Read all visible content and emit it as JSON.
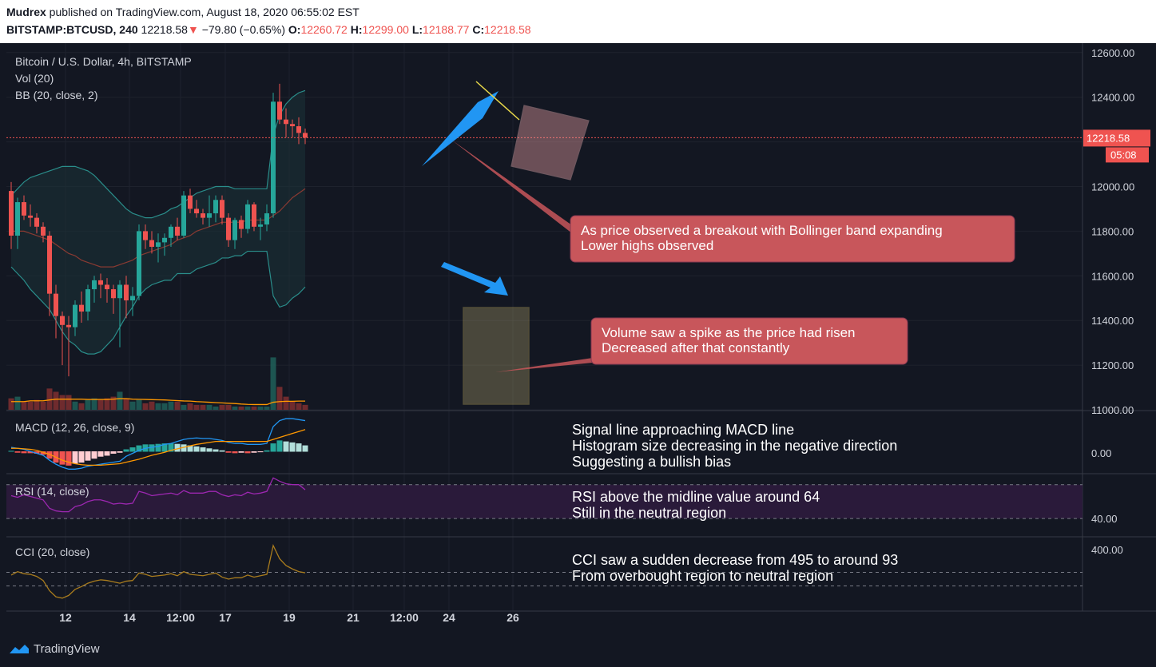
{
  "header": {
    "author": "Mudrex",
    "published": " published on TradingView.com, August 18, 2020 06:55:02 EST",
    "symbol": "BITSTAMP:BTCUSD, 240",
    "last": "12218.58",
    "change": "−79.80 (−0.65%)",
    "o_label": "O:",
    "o_val": "12260.72",
    "h_label": "H:",
    "h_val": "12299.00",
    "l_label": "L:",
    "l_val": "12188.77",
    "c_label": "C:",
    "c_val": "12218.58"
  },
  "legend": {
    "title": "Bitcoin / U.S. Dollar, 4h, BITSTAMP",
    "vol": "Vol (20)",
    "bb": "BB (20, close, 2)",
    "macd": "MACD (12, 26, close, 9)",
    "rsi": "RSI (14, close)",
    "cci": "CCI (20, close)"
  },
  "price_label": "12218.58",
  "countdown": "05:08",
  "footer": {
    "brand": "TradingView"
  },
  "annotations": {
    "box1": [
      "As price observed a breakout with Bollinger band expanding",
      "Lower highs observed"
    ],
    "box2": [
      "Volume saw a spike as the price had risen",
      "Decreased after that constantly"
    ],
    "macd": [
      "Signal line approaching MACD line",
      "Histogram size decreasing in the negative direction",
      "Suggesting a bullish bias"
    ],
    "rsi": [
      "RSI above the midline value around 64",
      "Still in the neutral region"
    ],
    "cci": [
      "CCI saw a sudden decrease from 495 to around 93",
      "From overbought region to neutral region"
    ]
  },
  "colors": {
    "up": "#26a69a",
    "down": "#ef5350",
    "bg": "#131722",
    "macd": "#2196f3",
    "signal": "#ff9800",
    "rsi": "#9c27b0",
    "cci": "#a97c1d",
    "note": "#c8565b"
  },
  "chart_data": {
    "type": "candlestick",
    "title": "Bitcoin / U.S. Dollar, 4h, BITSTAMP",
    "x_ticks": [
      "12",
      "14",
      "12:00",
      "17",
      "19",
      "21",
      "12:00",
      "24",
      "26"
    ],
    "x_tick_slots": [
      8.5,
      18.5,
      26.5,
      33.5,
      43.5,
      53.5,
      61.5,
      68.5,
      78.5
    ],
    "price_axis": {
      "ticks": [
        12600,
        12400,
        12200,
        12000,
        11800,
        11600,
        11400,
        11200,
        11000
      ],
      "range": [
        11000,
        12650
      ]
    },
    "candles": [
      [
        11980,
        12020,
        11720,
        11780
      ],
      [
        11780,
        11950,
        11720,
        11930
      ],
      [
        11930,
        11960,
        11850,
        11870
      ],
      [
        11870,
        11920,
        11820,
        11860
      ],
      [
        11860,
        11880,
        11790,
        11820
      ],
      [
        11820,
        11840,
        11750,
        11780
      ],
      [
        11780,
        11800,
        11420,
        11520
      ],
      [
        11520,
        11560,
        11320,
        11420
      ],
      [
        11420,
        11440,
        11200,
        11380
      ],
      [
        11380,
        11420,
        11150,
        11370
      ],
      [
        11370,
        11490,
        11330,
        11470
      ],
      [
        11470,
        11530,
        11390,
        11440
      ],
      [
        11440,
        11560,
        11400,
        11540
      ],
      [
        11540,
        11600,
        11480,
        11580
      ],
      [
        11580,
        11610,
        11500,
        11560
      ],
      [
        11560,
        11590,
        11480,
        11540
      ],
      [
        11540,
        11560,
        11430,
        11500
      ],
      [
        11500,
        11580,
        11280,
        11560
      ],
      [
        11560,
        11600,
        11410,
        11490
      ],
      [
        11490,
        11550,
        11420,
        11510
      ],
      [
        11510,
        11830,
        11490,
        11800
      ],
      [
        11800,
        11830,
        11720,
        11760
      ],
      [
        11760,
        11800,
        11700,
        11730
      ],
      [
        11730,
        11790,
        11660,
        11750
      ],
      [
        11750,
        11790,
        11690,
        11770
      ],
      [
        11770,
        11830,
        11730,
        11820
      ],
      [
        11820,
        11860,
        11760,
        11780
      ],
      [
        11780,
        11980,
        11770,
        11960
      ],
      [
        11960,
        11990,
        11880,
        11900
      ],
      [
        11900,
        11940,
        11860,
        11880
      ],
      [
        11880,
        11900,
        11830,
        11860
      ],
      [
        11860,
        11960,
        11820,
        11880
      ],
      [
        11880,
        11960,
        11840,
        11940
      ],
      [
        11940,
        11960,
        11830,
        11860
      ],
      [
        11860,
        11880,
        11730,
        11760
      ],
      [
        11760,
        11860,
        11720,
        11850
      ],
      [
        11850,
        11870,
        11770,
        11810
      ],
      [
        11810,
        11940,
        11790,
        11920
      ],
      [
        11920,
        11930,
        11800,
        11820
      ],
      [
        11820,
        11860,
        11760,
        11830
      ],
      [
        11830,
        11920,
        11800,
        11880
      ],
      [
        11880,
        12420,
        11860,
        12380
      ],
      [
        12380,
        12460,
        12280,
        12300
      ],
      [
        12300,
        12350,
        12220,
        12280
      ],
      [
        12280,
        12300,
        12220,
        12270
      ],
      [
        12270,
        12310,
        12190,
        12240
      ],
      [
        12240,
        12260,
        12190,
        12218.58
      ]
    ],
    "bb_upper": [
      11960,
      11990,
      12020,
      12040,
      12050,
      12060,
      12070,
      12080,
      12090,
      12090,
      12090,
      12080,
      12070,
      12050,
      12020,
      11990,
      11960,
      11930,
      11900,
      11880,
      11870,
      11860,
      11860,
      11870,
      11880,
      11900,
      11910,
      11930,
      11950,
      11970,
      11980,
      11990,
      12000,
      12000,
      12000,
      11990,
      11990,
      11990,
      11990,
      11990,
      11990,
      12230,
      12320,
      12370,
      12400,
      12420,
      12430
    ],
    "bb_basis": [
      11800,
      11800,
      11800,
      11790,
      11780,
      11770,
      11760,
      11740,
      11720,
      11700,
      11690,
      11670,
      11660,
      11650,
      11640,
      11640,
      11640,
      11650,
      11660,
      11670,
      11690,
      11700,
      11710,
      11720,
      11730,
      11740,
      11760,
      11770,
      11780,
      11800,
      11810,
      11820,
      11830,
      11840,
      11840,
      11840,
      11840,
      11850,
      11850,
      11850,
      11850,
      11870,
      11890,
      11920,
      11950,
      11970,
      11990
    ],
    "bb_lower": [
      11640,
      11610,
      11580,
      11540,
      11510,
      11480,
      11450,
      11400,
      11350,
      11310,
      11290,
      11260,
      11250,
      11250,
      11260,
      11290,
      11320,
      11370,
      11420,
      11460,
      11510,
      11540,
      11560,
      11570,
      11580,
      11580,
      11610,
      11610,
      11610,
      11630,
      11640,
      11650,
      11660,
      11680,
      11680,
      11690,
      11690,
      11710,
      11710,
      11710,
      11710,
      11510,
      11460,
      11470,
      11500,
      11520,
      11550
    ],
    "volume": [
      7,
      8,
      5,
      5,
      6,
      5,
      13,
      11,
      9,
      9,
      5,
      4,
      6,
      7,
      6,
      7,
      8,
      11,
      7,
      5,
      6,
      4,
      5,
      4,
      4,
      5,
      5,
      3,
      4,
      3,
      3,
      3,
      2,
      3,
      3,
      2,
      2,
      2,
      2,
      2,
      2,
      32,
      14,
      8,
      5,
      4,
      3
    ],
    "volume_ma": [
      5,
      5,
      5,
      5.5,
      5.5,
      5.5,
      6,
      6.5,
      6.5,
      6.5,
      6.5,
      6.5,
      6.3,
      6.3,
      6.3,
      6.3,
      6.5,
      6.8,
      6.8,
      6.5,
      6.4,
      6.3,
      6.2,
      6.1,
      6,
      5.8,
      5.6,
      5.4,
      5.3,
      5,
      4.8,
      4.6,
      4.4,
      4.2,
      4,
      3.8,
      3.5,
      3.3,
      3.2,
      3.2,
      3.2,
      4.6,
      5,
      5.2,
      5.2,
      5.3,
      5.3
    ],
    "macd": {
      "zero_tick": "0.00",
      "hist": [
        1,
        -2,
        -3,
        -3,
        -4,
        -6,
        -14,
        -22,
        -26,
        -28,
        -24,
        -22,
        -18,
        -14,
        -10,
        -8,
        -4,
        -2,
        4,
        8,
        12,
        14,
        14,
        15,
        16,
        16,
        15,
        14,
        12,
        10,
        8,
        6,
        4,
        2,
        -2,
        -3,
        -2,
        -3,
        -2,
        -1,
        2,
        16,
        22,
        20,
        18,
        16,
        12
      ],
      "macd": [
        8,
        6,
        4,
        0,
        -4,
        -8,
        -18,
        -26,
        -32,
        -36,
        -36,
        -34,
        -30,
        -28,
        -26,
        -24,
        -22,
        -20,
        -10,
        -4,
        2,
        6,
        8,
        10,
        14,
        16,
        20,
        24,
        26,
        27,
        26,
        26,
        24,
        22,
        18,
        16,
        16,
        14,
        14,
        14,
        16,
        50,
        62,
        66,
        66,
        64,
        62
      ],
      "signal": [
        6,
        6,
        5,
        4,
        2,
        -2,
        -6,
        -12,
        -18,
        -22,
        -25,
        -27,
        -28,
        -28,
        -28,
        -27,
        -26,
        -25,
        -22,
        -19,
        -16,
        -12,
        -8,
        -5,
        -2,
        2,
        5,
        8,
        11,
        14,
        16,
        18,
        20,
        20,
        20,
        20,
        20,
        20,
        20,
        20,
        20,
        24,
        28,
        32,
        36,
        40,
        44
      ]
    },
    "rsi": {
      "tick": "40.00",
      "upper": 70,
      "lower": 30,
      "values": [
        57,
        55,
        58,
        56,
        54,
        52,
        42,
        39,
        38,
        38,
        44,
        46,
        50,
        52,
        52,
        50,
        47,
        48,
        47,
        48,
        62,
        60,
        57,
        58,
        59,
        60,
        58,
        63,
        60,
        60,
        60,
        62,
        62,
        58,
        56,
        58,
        57,
        61,
        59,
        60,
        62,
        78,
        74,
        71,
        70,
        70,
        64
      ]
    },
    "cci": {
      "tick": "400.00",
      "upper": 100,
      "lower": -100,
      "values": [
        60,
        110,
        80,
        70,
        40,
        -20,
        -170,
        -260,
        -280,
        -240,
        -150,
        -110,
        -60,
        -30,
        -10,
        -20,
        -40,
        -60,
        -30,
        -20,
        90,
        70,
        40,
        50,
        60,
        80,
        50,
        110,
        70,
        60,
        50,
        70,
        90,
        30,
        0,
        20,
        20,
        60,
        30,
        50,
        70,
        495,
        300,
        200,
        150,
        110,
        93
      ]
    }
  }
}
